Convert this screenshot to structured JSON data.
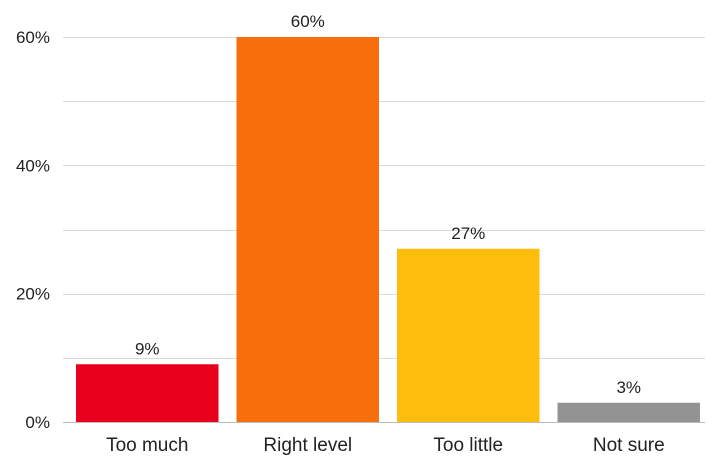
{
  "chart_data": {
    "type": "bar",
    "categories": [
      "Too much",
      "Right level",
      "Too little",
      "Not sure"
    ],
    "values": [
      9,
      60,
      27,
      3
    ],
    "value_labels": [
      "9%",
      "60%",
      "27%",
      "3%"
    ],
    "colors": [
      "#e8001c",
      "#f96e0c",
      "#fdbd0c",
      "#939393"
    ],
    "ylim": [
      0,
      60
    ],
    "yticks": [
      0,
      20,
      40,
      60
    ],
    "ytick_labels": [
      "0%",
      "20%",
      "40%",
      "60%"
    ],
    "grid": true,
    "title": "",
    "xlabel": "",
    "ylabel": ""
  }
}
